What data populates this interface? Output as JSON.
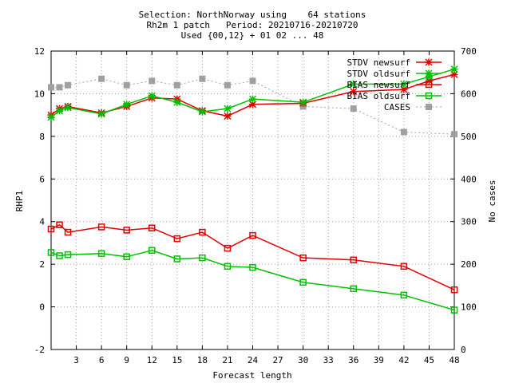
{
  "chart_data": {
    "type": "line",
    "title": [
      "Selection: NorthNorway using    64 stations",
      "Rh2m 1 patch   Period: 20210716-20210720",
      "Used {00,12} + 01 02 ... 48"
    ],
    "xlabel": "Forecast length",
    "ylabel": "RHP1",
    "y2label": "No cases",
    "xlim": [
      0,
      48
    ],
    "ylim": [
      -2,
      12
    ],
    "y2lim": [
      0,
      700
    ],
    "xticks": [
      3,
      6,
      9,
      12,
      15,
      18,
      21,
      24,
      27,
      30,
      33,
      36,
      39,
      42,
      45,
      48
    ],
    "yticks": [
      -2,
      0,
      2,
      4,
      6,
      8,
      10,
      12
    ],
    "y2ticks": [
      0,
      100,
      200,
      300,
      400,
      500,
      600,
      700
    ],
    "grid": true,
    "legend_position": "top-right",
    "series": [
      {
        "name": "STDV newsurf",
        "axis": "left",
        "color": "#e00000",
        "marker": "star",
        "x": [
          0,
          1,
          2,
          6,
          9,
          12,
          15,
          18,
          21,
          24,
          30,
          36,
          42,
          45,
          48
        ],
        "y": [
          9.0,
          9.3,
          9.4,
          9.1,
          9.4,
          9.8,
          9.75,
          9.2,
          8.95,
          9.5,
          9.55,
          10.1,
          10.2,
          10.6,
          10.9
        ]
      },
      {
        "name": "STDV oldsurf",
        "axis": "left",
        "color": "#00c000",
        "marker": "star",
        "x": [
          0,
          1,
          2,
          6,
          9,
          12,
          15,
          18,
          21,
          24,
          30,
          36,
          42,
          45,
          48
        ],
        "y": [
          8.9,
          9.2,
          9.35,
          9.05,
          9.5,
          9.9,
          9.6,
          9.15,
          9.3,
          9.75,
          9.6,
          10.45,
          10.45,
          10.8,
          11.15
        ]
      },
      {
        "name": "BIAS newsurf",
        "axis": "left",
        "color": "#e00000",
        "marker": "square",
        "x": [
          0,
          1,
          2,
          6,
          9,
          12,
          15,
          18,
          21,
          24,
          30,
          36,
          42,
          48
        ],
        "y": [
          3.65,
          3.85,
          3.5,
          3.75,
          3.6,
          3.7,
          3.2,
          3.5,
          2.75,
          3.35,
          2.3,
          2.2,
          1.9,
          0.8
        ]
      },
      {
        "name": "BIAS oldsurf",
        "axis": "left",
        "color": "#00c000",
        "marker": "square",
        "x": [
          0,
          1,
          2,
          6,
          9,
          12,
          15,
          18,
          21,
          24,
          30,
          36,
          42,
          48
        ],
        "y": [
          2.55,
          2.4,
          2.45,
          2.5,
          2.35,
          2.65,
          2.25,
          2.3,
          1.9,
          1.85,
          1.15,
          0.85,
          0.55,
          -0.15
        ]
      },
      {
        "name": "CASES",
        "axis": "right",
        "color": "#a0a0a0",
        "marker": "filled-square",
        "x": [
          0,
          1,
          2,
          6,
          9,
          12,
          15,
          18,
          21,
          24,
          30,
          36,
          42,
          48
        ],
        "y": [
          615,
          615,
          620,
          635,
          620,
          630,
          620,
          635,
          620,
          630,
          570,
          565,
          510,
          505
        ]
      }
    ]
  }
}
